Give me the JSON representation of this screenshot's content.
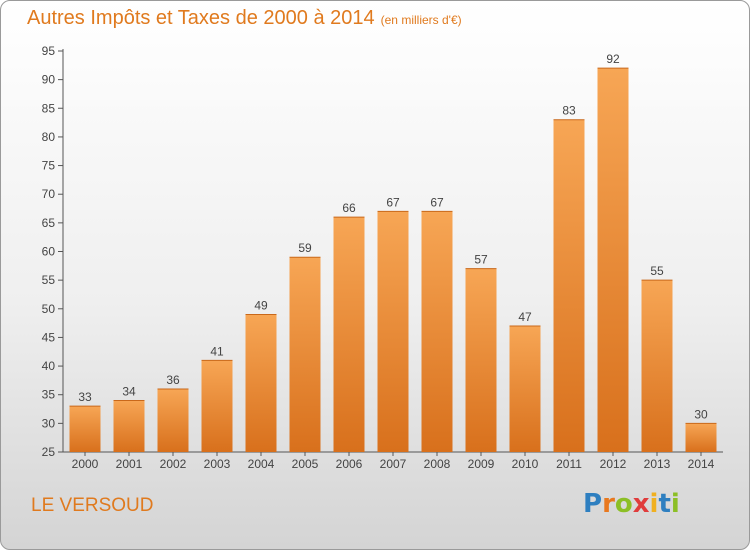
{
  "chart_data": {
    "type": "bar",
    "title": "Autres Impôts et Taxes de 2000 à 2014",
    "subtitle": "(en milliers d'€)",
    "xlabel": "",
    "ylabel": "",
    "categories": [
      "2000",
      "2001",
      "2002",
      "2003",
      "2004",
      "2005",
      "2006",
      "2007",
      "2008",
      "2009",
      "2010",
      "2011",
      "2012",
      "2013",
      "2014"
    ],
    "values": [
      33,
      34,
      36,
      41,
      49,
      59,
      66,
      67,
      67,
      57,
      47,
      83,
      92,
      55,
      30
    ],
    "ylim": [
      25,
      95
    ],
    "yticks": [
      25,
      30,
      35,
      40,
      45,
      50,
      55,
      60,
      65,
      70,
      75,
      80,
      85,
      90,
      95
    ],
    "grid": false,
    "bar_color_top": "#f7a655",
    "bar_color_bottom": "#d8701c"
  },
  "footer": {
    "town": "LE VERSOUD",
    "logo_letters": [
      "P",
      "r",
      "o",
      "x",
      "i",
      "t",
      "i"
    ],
    "logo_colors": [
      "#2e7fc0",
      "#e8781e",
      "#8cbf26",
      "#e03c3c",
      "#f0b020",
      "#2e7fc0",
      "#8cbf26"
    ]
  }
}
